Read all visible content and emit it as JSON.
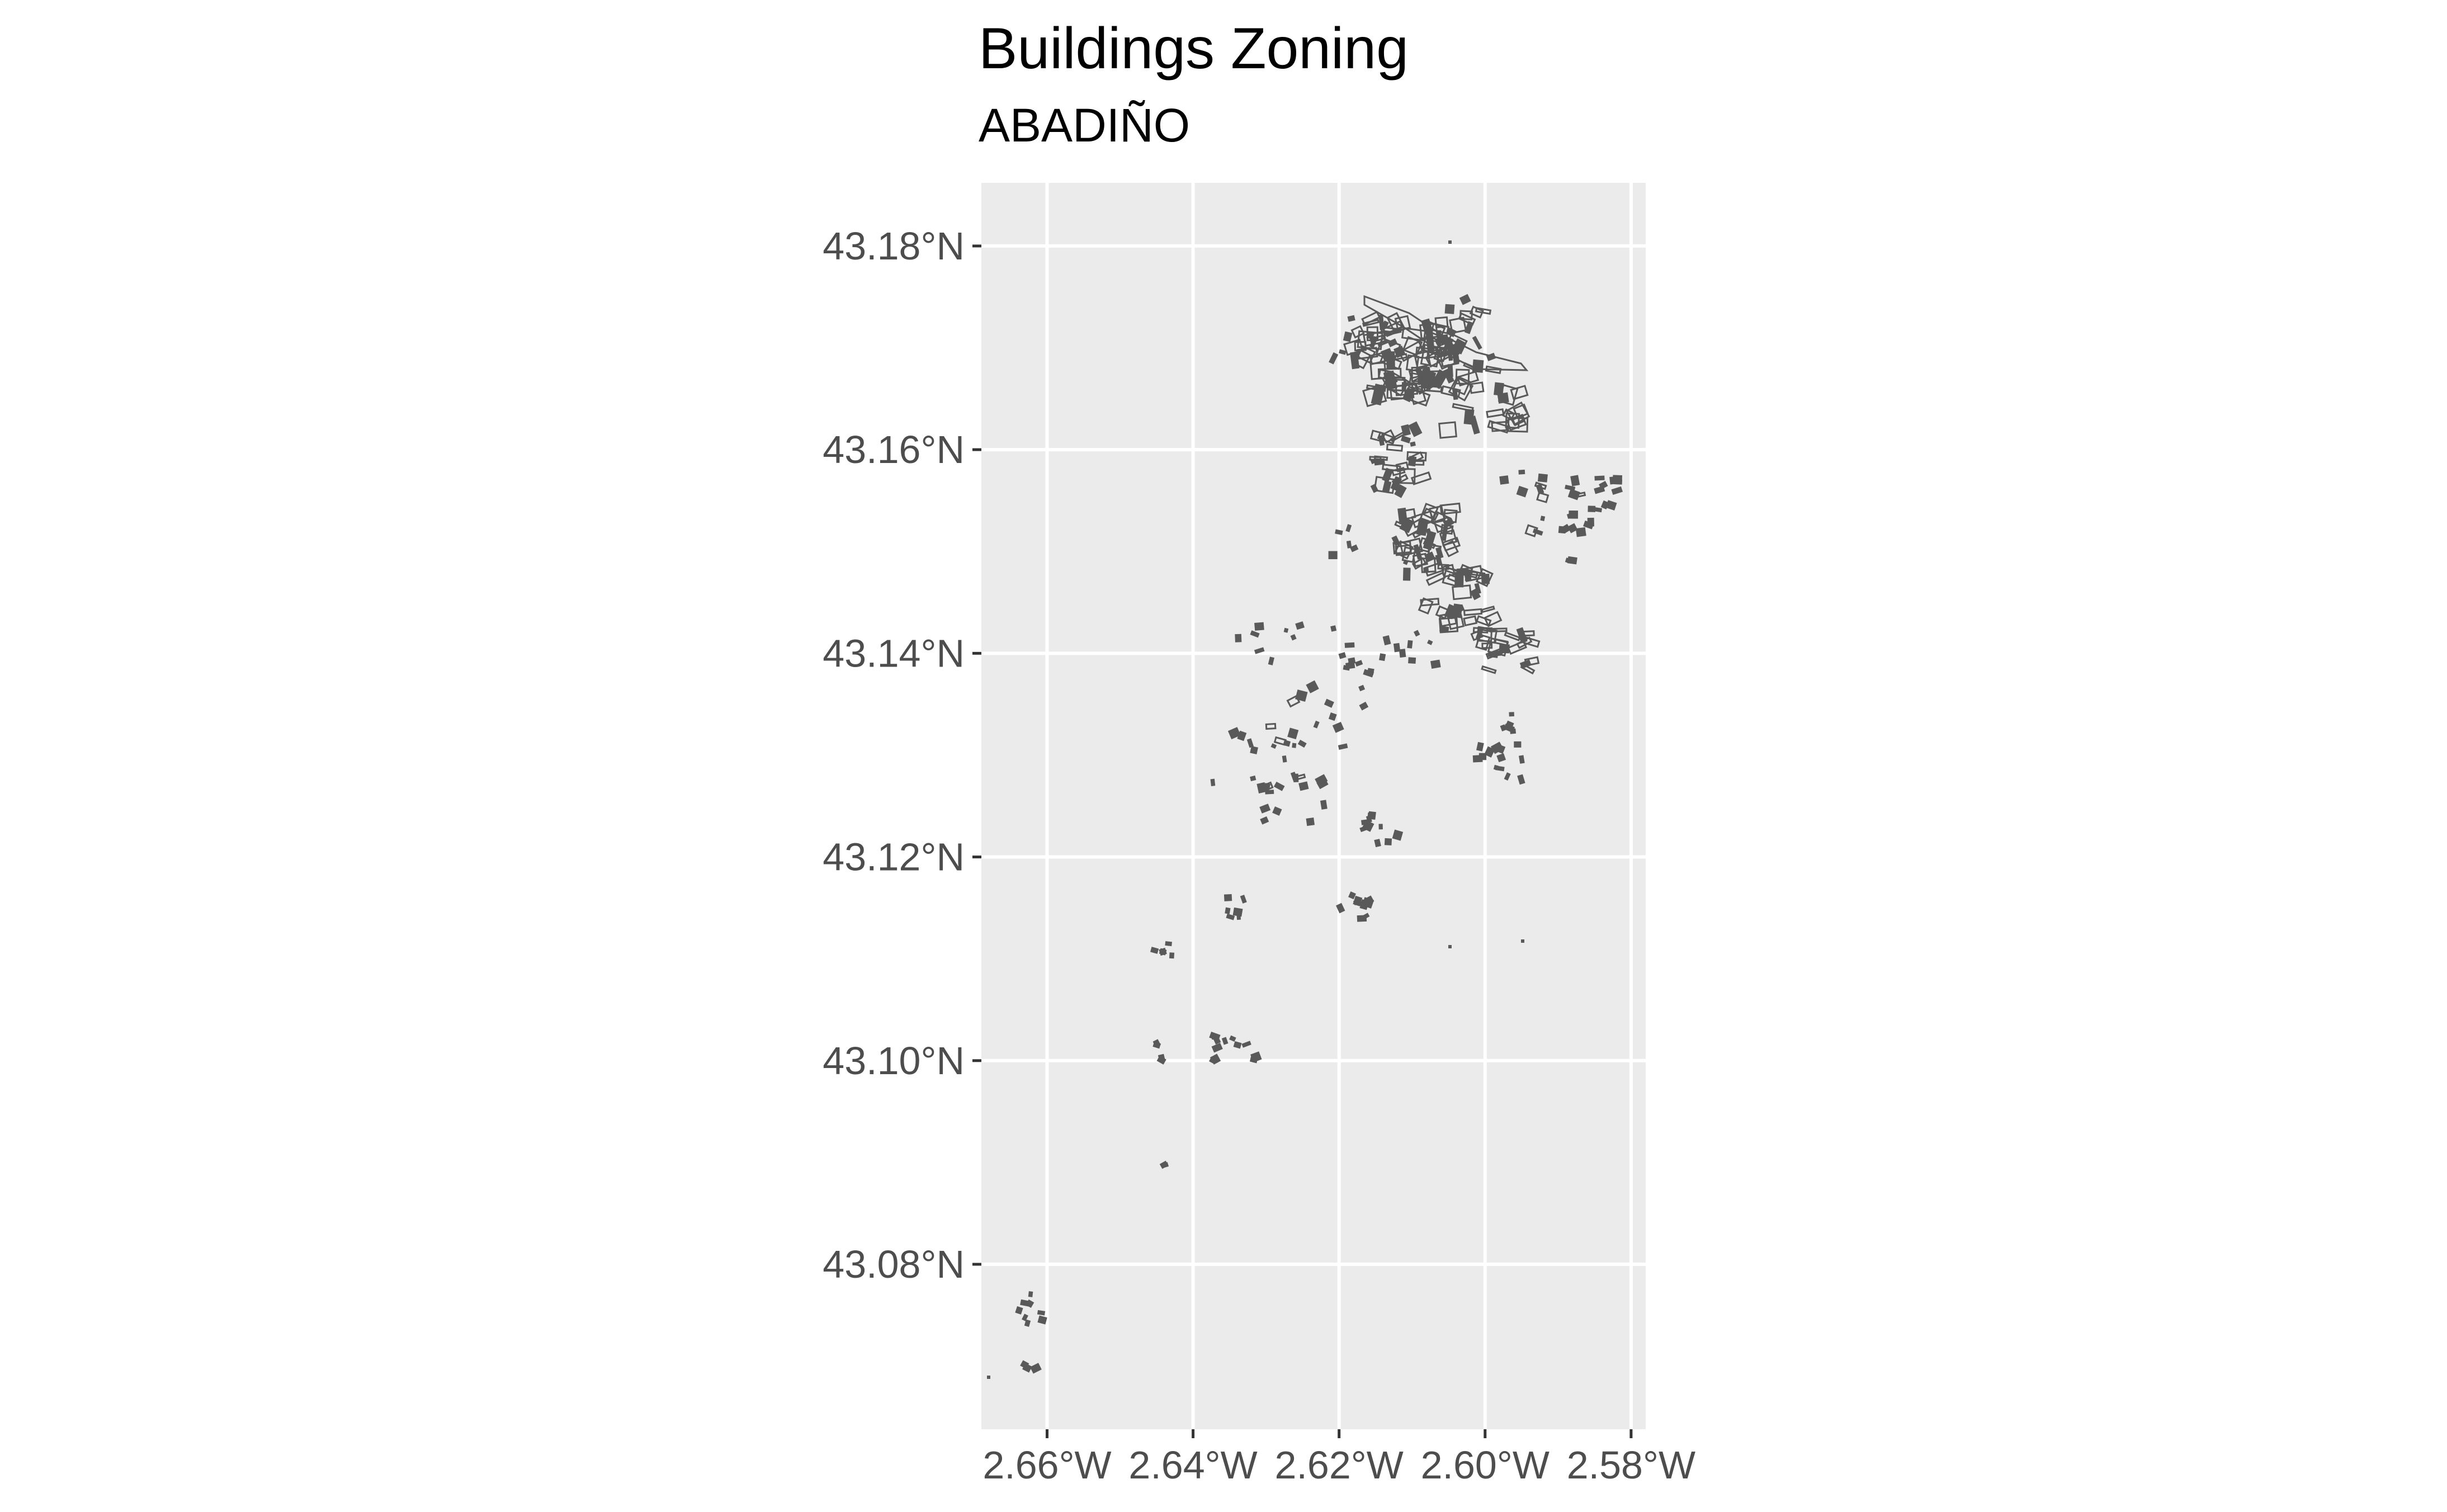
{
  "title": "Buildings Zoning",
  "subtitle": "ABADIÑO",
  "map": {
    "type": "map",
    "panel_background": "#ebebeb",
    "grid_color": "#ffffff",
    "feature_color": "#595959",
    "xlim": [
      -2.669,
      -2.578
    ],
    "ylim": [
      43.0638,
      43.1862
    ],
    "x_ticks": [
      {
        "value": -2.66,
        "label": "2.66°W"
      },
      {
        "value": -2.64,
        "label": "2.64°W"
      },
      {
        "value": -2.62,
        "label": "2.62°W"
      },
      {
        "value": -2.6,
        "label": "2.60°W"
      },
      {
        "value": -2.58,
        "label": "2.58°W"
      }
    ],
    "y_ticks": [
      {
        "value": 43.18,
        "label": "43.18°N"
      },
      {
        "value": 43.16,
        "label": "43.16°N"
      },
      {
        "value": 43.14,
        "label": "43.14°N"
      },
      {
        "value": 43.12,
        "label": "43.12°N"
      },
      {
        "value": 43.1,
        "label": "43.10°N"
      },
      {
        "value": 43.08,
        "label": "43.08°N"
      }
    ]
  }
}
